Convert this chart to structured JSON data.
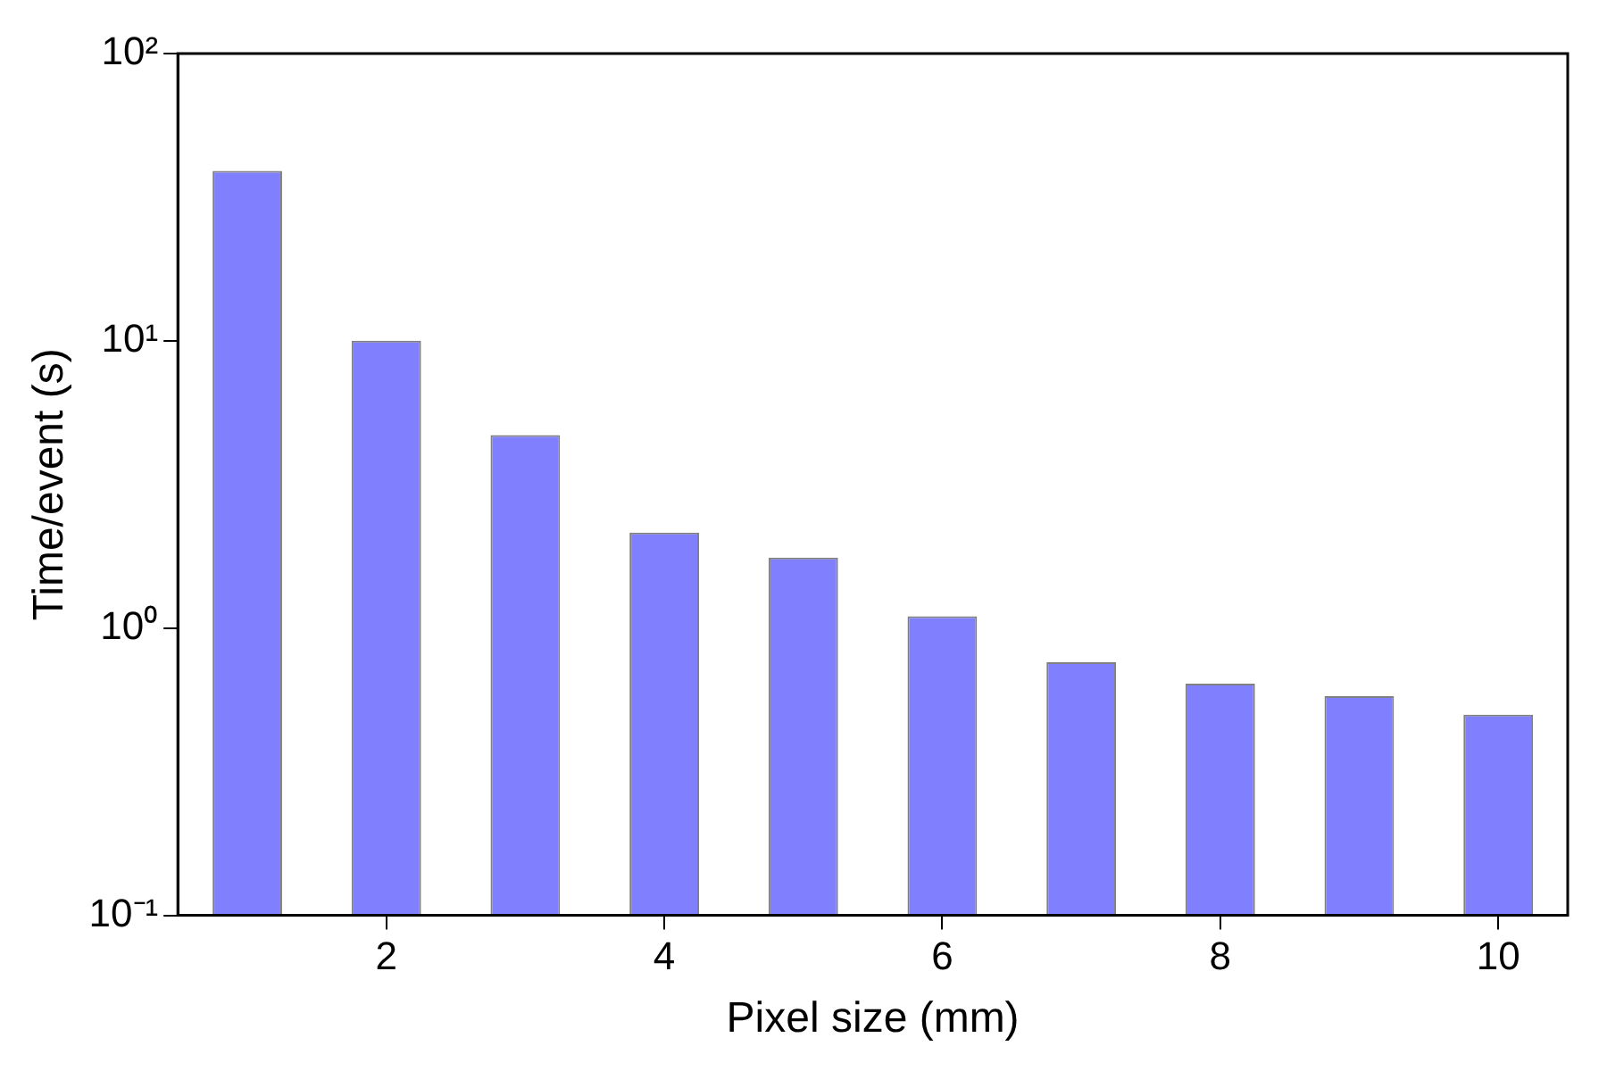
{
  "chart_data": {
    "type": "bar",
    "xlabel": "Pixel size (mm)",
    "ylabel": "Time/event (s)",
    "x": [
      1,
      2,
      3,
      4,
      5,
      6,
      7,
      8,
      9,
      10
    ],
    "values": [
      39,
      10,
      4.7,
      2.15,
      1.76,
      1.1,
      0.76,
      0.64,
      0.58,
      0.5
    ],
    "color": "#8080ff",
    "xlim": [
      0.5,
      10.5
    ],
    "xticks": [
      2,
      4,
      6,
      8,
      10
    ],
    "ylim": [
      0.1,
      100
    ],
    "yticks": [
      {
        "value": 0.1,
        "label": "10⁻¹"
      },
      {
        "value": 1,
        "label": "10⁰"
      },
      {
        "value": 10,
        "label": "10¹"
      },
      {
        "value": 100,
        "label": "10²"
      }
    ],
    "log": "y",
    "grid": false,
    "legend": false
  }
}
